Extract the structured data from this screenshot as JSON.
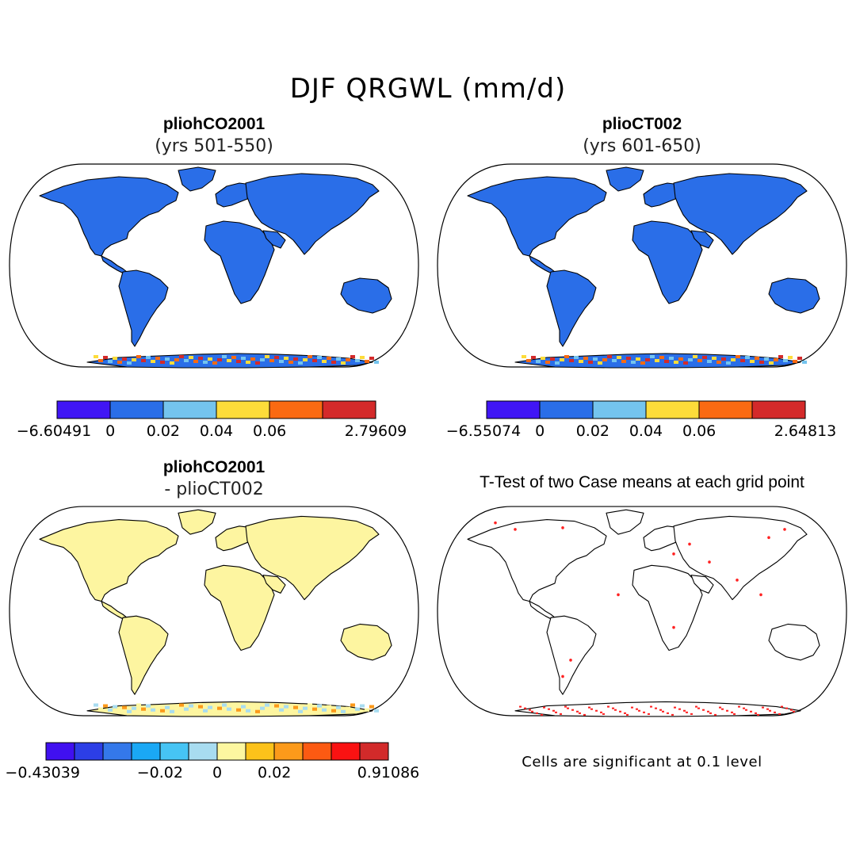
{
  "figure": {
    "title": "DJF QRGWL (mm/d)"
  },
  "panels": [
    {
      "id": "case1",
      "title": "pliohCO2001",
      "subtitle": "(yrs 501-550)",
      "fill": "#2a6ee8",
      "colorbar": {
        "colors": [
          "#4016f5",
          "#2a6ee8",
          "#74c4ee",
          "#fddc3a",
          "#fa6a12",
          "#d42a2a"
        ],
        "ticks": [
          "-6.60491",
          "0",
          "0.02",
          "0.04",
          "0.06",
          "2.79609"
        ]
      }
    },
    {
      "id": "case2",
      "title": "plioCT002",
      "subtitle": "(yrs 601-650)",
      "fill": "#2a6ee8",
      "colorbar": {
        "colors": [
          "#4016f5",
          "#2a6ee8",
          "#74c4ee",
          "#fddc3a",
          "#fa6a12",
          "#d42a2a"
        ],
        "ticks": [
          "-6.55074",
          "0",
          "0.02",
          "0.04",
          "0.06",
          "2.64813"
        ]
      }
    },
    {
      "id": "diff",
      "title": "pliohCO2001",
      "subtitle": "- plioCT002",
      "fill": "#fdf5a0",
      "colorbar": {
        "colors": [
          "#4010f0",
          "#2c3ee6",
          "#3478ea",
          "#1aa8f5",
          "#46c4f4",
          "#a8dcf0",
          "#fdf7a0",
          "#fcc21a",
          "#fc9a1a",
          "#fc5a12",
          "#fa1212",
          "#d22a2a"
        ],
        "ticks": [
          "-0.43039",
          "-0.02",
          "0",
          "0.02",
          "0.91086"
        ]
      }
    },
    {
      "id": "ttest",
      "title": "T-Test of two Case means at each grid point",
      "fill": "none",
      "note": "Cells are significant at 0.1 level"
    }
  ]
}
